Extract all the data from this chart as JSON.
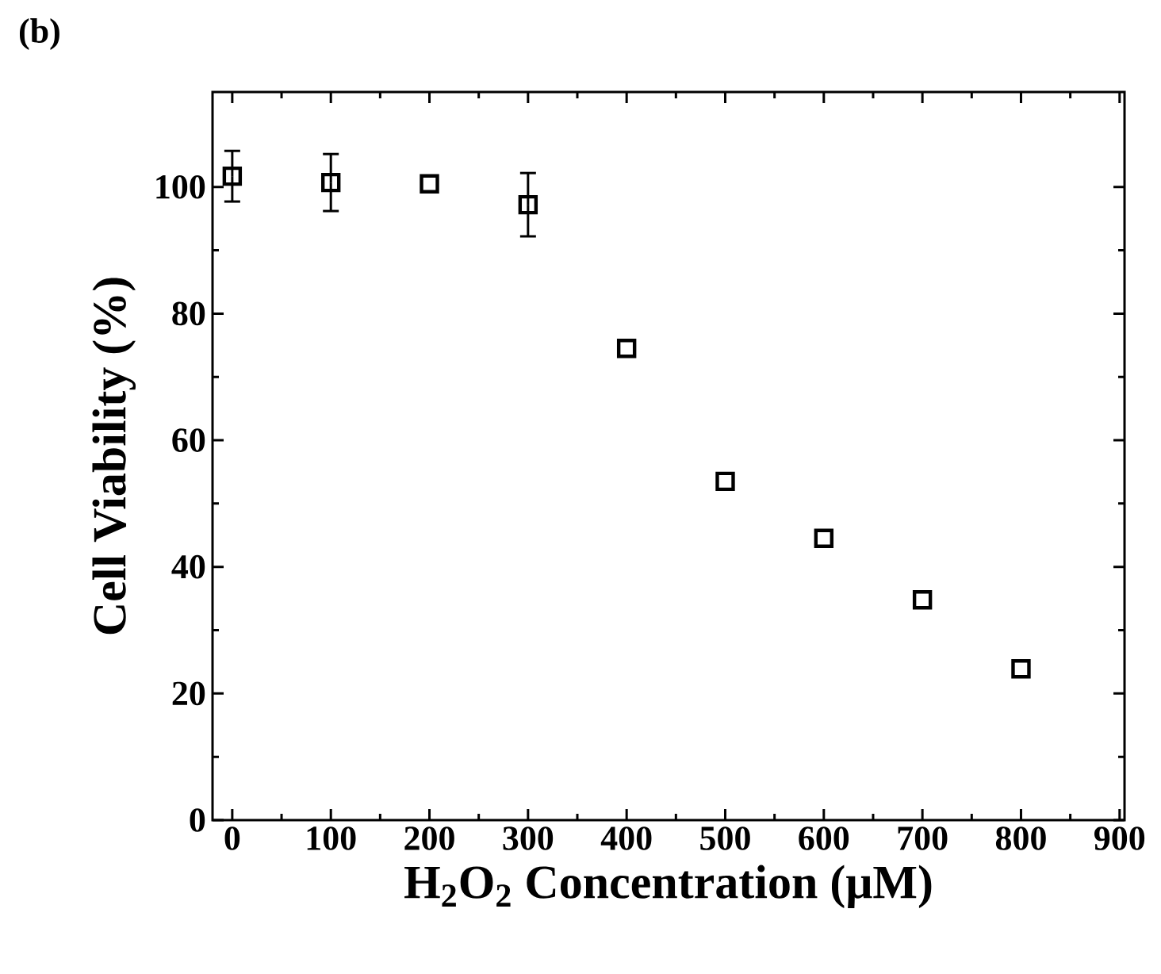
{
  "chart_data": {
    "type": "scatter",
    "annotations": [
      "(b)"
    ],
    "xlabel": "H$_{2}$O$_{2}$ Concentration (μM)",
    "ylabel": "Cell Viability (%)",
    "x": [
      0,
      100,
      200,
      300,
      400,
      500,
      600,
      700,
      800
    ],
    "values": [
      101.7,
      100.7,
      100.5,
      97.2,
      74.5,
      53.5,
      44.5,
      34.8,
      23.9
    ],
    "errors": [
      4,
      4.5,
      null,
      5,
      null,
      null,
      null,
      null,
      null
    ],
    "color": "#000000",
    "marker": "square",
    "xlim": [
      -20,
      905
    ],
    "ylim": [
      0,
      115
    ],
    "xticks": [
      0,
      100,
      200,
      300,
      400,
      500,
      600,
      700,
      800,
      900
    ],
    "yticks": [
      0,
      20,
      40,
      60,
      80,
      100
    ]
  }
}
